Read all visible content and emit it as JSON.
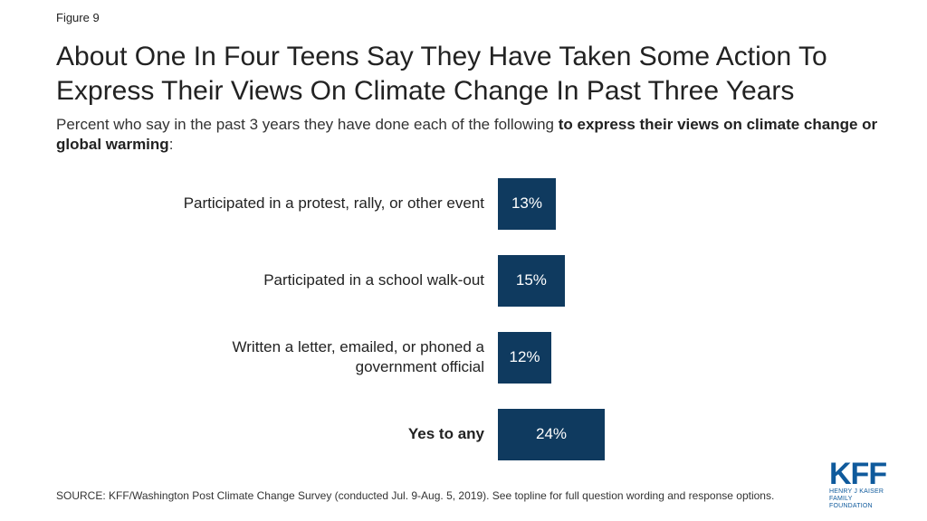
{
  "chart_data": {
    "type": "bar",
    "orientation": "horizontal",
    "figure_label": "Figure 9",
    "title": "About One In Four Teens Say They Have Taken Some Action To Express Their Views On Climate Change In Past Three Years",
    "subtitle": [
      "Percent who say in the past 3 years they have done each of the following",
      "to express their views on climate change or global warming",
      ":"
    ],
    "categories": [
      "Participated in a protest, rally, or other event",
      "Participated in a school walk-out",
      "Written a letter, emailed, or phoned a government official",
      "Yes to any"
    ],
    "values": [
      13,
      15,
      12,
      24
    ],
    "value_labels": [
      "13%",
      "15%",
      "12%",
      "24%"
    ],
    "color": "#0f3a5f",
    "source": "SOURCE: KFF/Washington Post Climate Change Survey (conducted Jul. 9-Aug. 5, 2019). See topline for full question wording and response options.",
    "logo": {
      "name": "KFF",
      "line1": "HENRY J KAISER",
      "line2": "FAMILY FOUNDATION"
    }
  }
}
